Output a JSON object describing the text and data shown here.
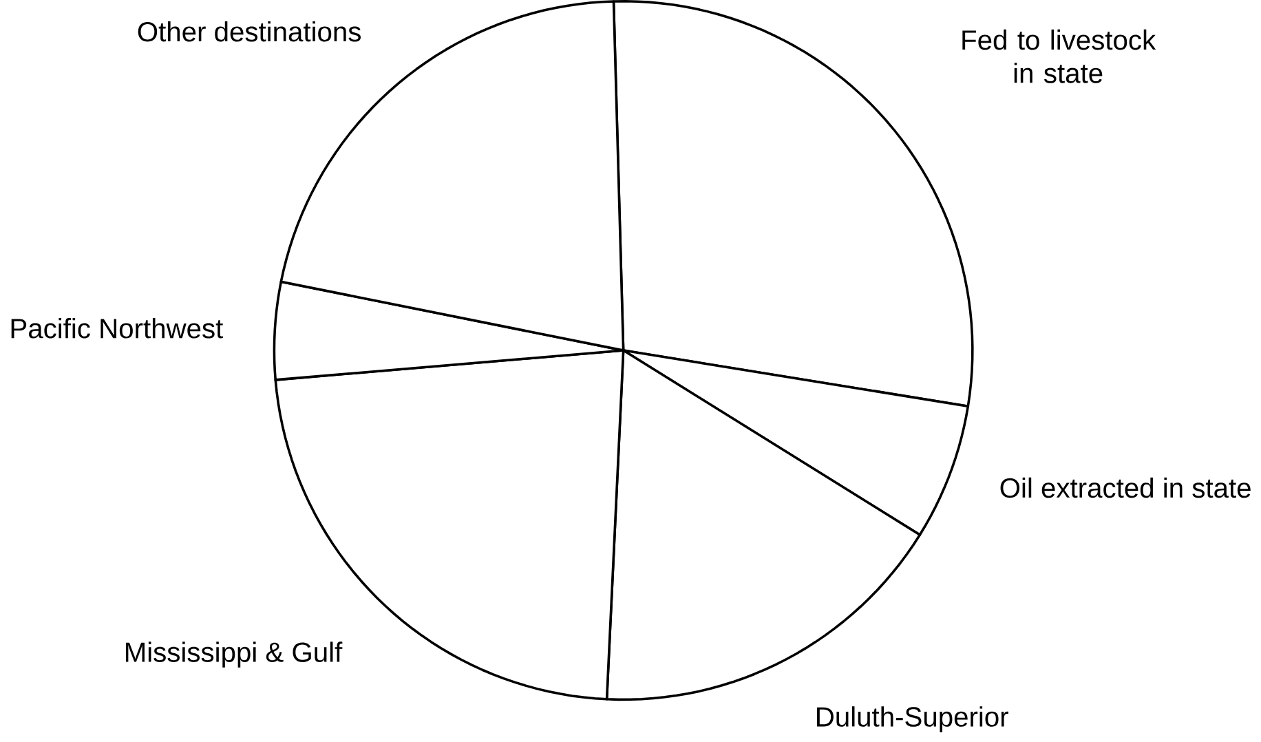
{
  "chart_data": {
    "type": "pie",
    "categories": [
      "Fed to livestock in state",
      "Oil extracted in state",
      "Duluth-Superior",
      "Mississippi & Gulf",
      "Pacific Northwest",
      "Other destinations"
    ],
    "values": [
      28.0,
      6.3,
      16.9,
      22.9,
      4.5,
      21.4
    ],
    "colors": [
      "#ffffff",
      "#ffffff",
      "#ffffff",
      "#ffffff",
      "#ffffff",
      "#ffffff"
    ]
  }
}
